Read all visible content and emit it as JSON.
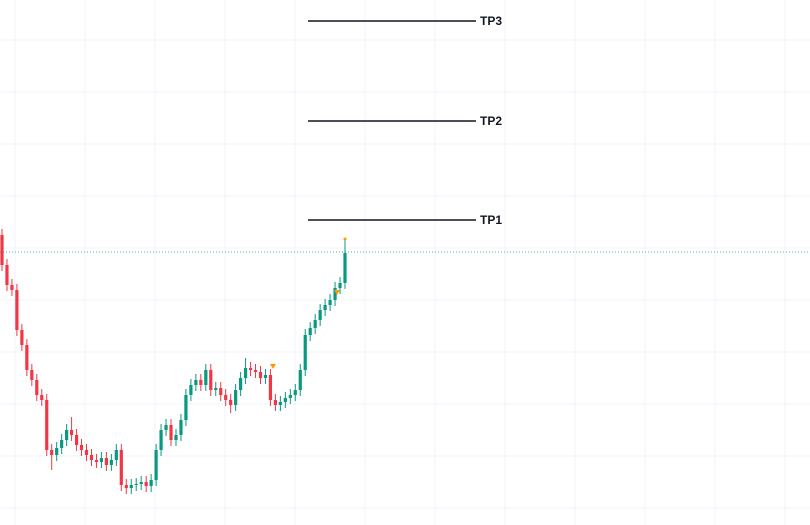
{
  "chart_data": {
    "type": "candlestick",
    "open": [
      290,
      260,
      240,
      235,
      195,
      180,
      155,
      145,
      130,
      125,
      75,
      70,
      77,
      85,
      95,
      90,
      80,
      75,
      70,
      65,
      63,
      67,
      60,
      65,
      75,
      40,
      37,
      40,
      41,
      43,
      39,
      45,
      75,
      95,
      100,
      85,
      90,
      105,
      130,
      140,
      145,
      140,
      155,
      135,
      137,
      130,
      125,
      120,
      135,
      147,
      157,
      155,
      153,
      147,
      150,
      125,
      120,
      123,
      127,
      130,
      135,
      155,
      190,
      197,
      205,
      215,
      220,
      225,
      237,
      242
    ],
    "high": [
      296,
      266,
      246,
      241,
      201,
      186,
      161,
      151,
      136,
      131,
      81,
      83,
      91,
      101,
      108,
      96,
      86,
      81,
      76,
      71,
      73,
      73,
      71,
      81,
      81,
      46,
      46,
      47,
      49,
      49,
      51,
      81,
      101,
      106,
      106,
      96,
      111,
      136,
      146,
      151,
      151,
      161,
      161,
      143,
      143,
      136,
      131,
      141,
      153,
      167,
      163,
      161,
      159,
      156,
      156,
      131,
      129,
      133,
      136,
      141,
      161,
      196,
      203,
      211,
      221,
      226,
      231,
      243,
      248,
      286
    ],
    "low": [
      254,
      234,
      229,
      189,
      174,
      149,
      139,
      124,
      119,
      69,
      55,
      64,
      71,
      79,
      84,
      74,
      69,
      64,
      59,
      57,
      57,
      54,
      54,
      59,
      34,
      31,
      31,
      34,
      35,
      33,
      33,
      39,
      69,
      89,
      79,
      79,
      84,
      99,
      124,
      134,
      134,
      134,
      129,
      129,
      124,
      119,
      112,
      114,
      129,
      141,
      149,
      147,
      141,
      141,
      119,
      114,
      114,
      117,
      121,
      124,
      129,
      149,
      184,
      191,
      199,
      209,
      214,
      219,
      231,
      236
    ],
    "close": [
      260,
      240,
      235,
      195,
      180,
      155,
      145,
      130,
      125,
      75,
      70,
      77,
      85,
      95,
      90,
      80,
      75,
      70,
      65,
      63,
      67,
      60,
      65,
      75,
      40,
      37,
      40,
      41,
      43,
      39,
      45,
      75,
      95,
      100,
      85,
      90,
      105,
      130,
      140,
      145,
      140,
      155,
      135,
      137,
      130,
      125,
      120,
      135,
      147,
      157,
      155,
      153,
      147,
      150,
      125,
      120,
      123,
      127,
      130,
      135,
      155,
      190,
      197,
      205,
      215,
      220,
      225,
      237,
      242,
      272
    ],
    "up_color": "#089981",
    "down_color": "#f23645",
    "levels": [
      {
        "label": "TP1",
        "value": 305
      },
      {
        "label": "TP2",
        "value": 404
      },
      {
        "label": "TP3",
        "value": 504
      }
    ],
    "price_line": 273,
    "ylim": [
      0,
      525
    ],
    "grid": true
  }
}
